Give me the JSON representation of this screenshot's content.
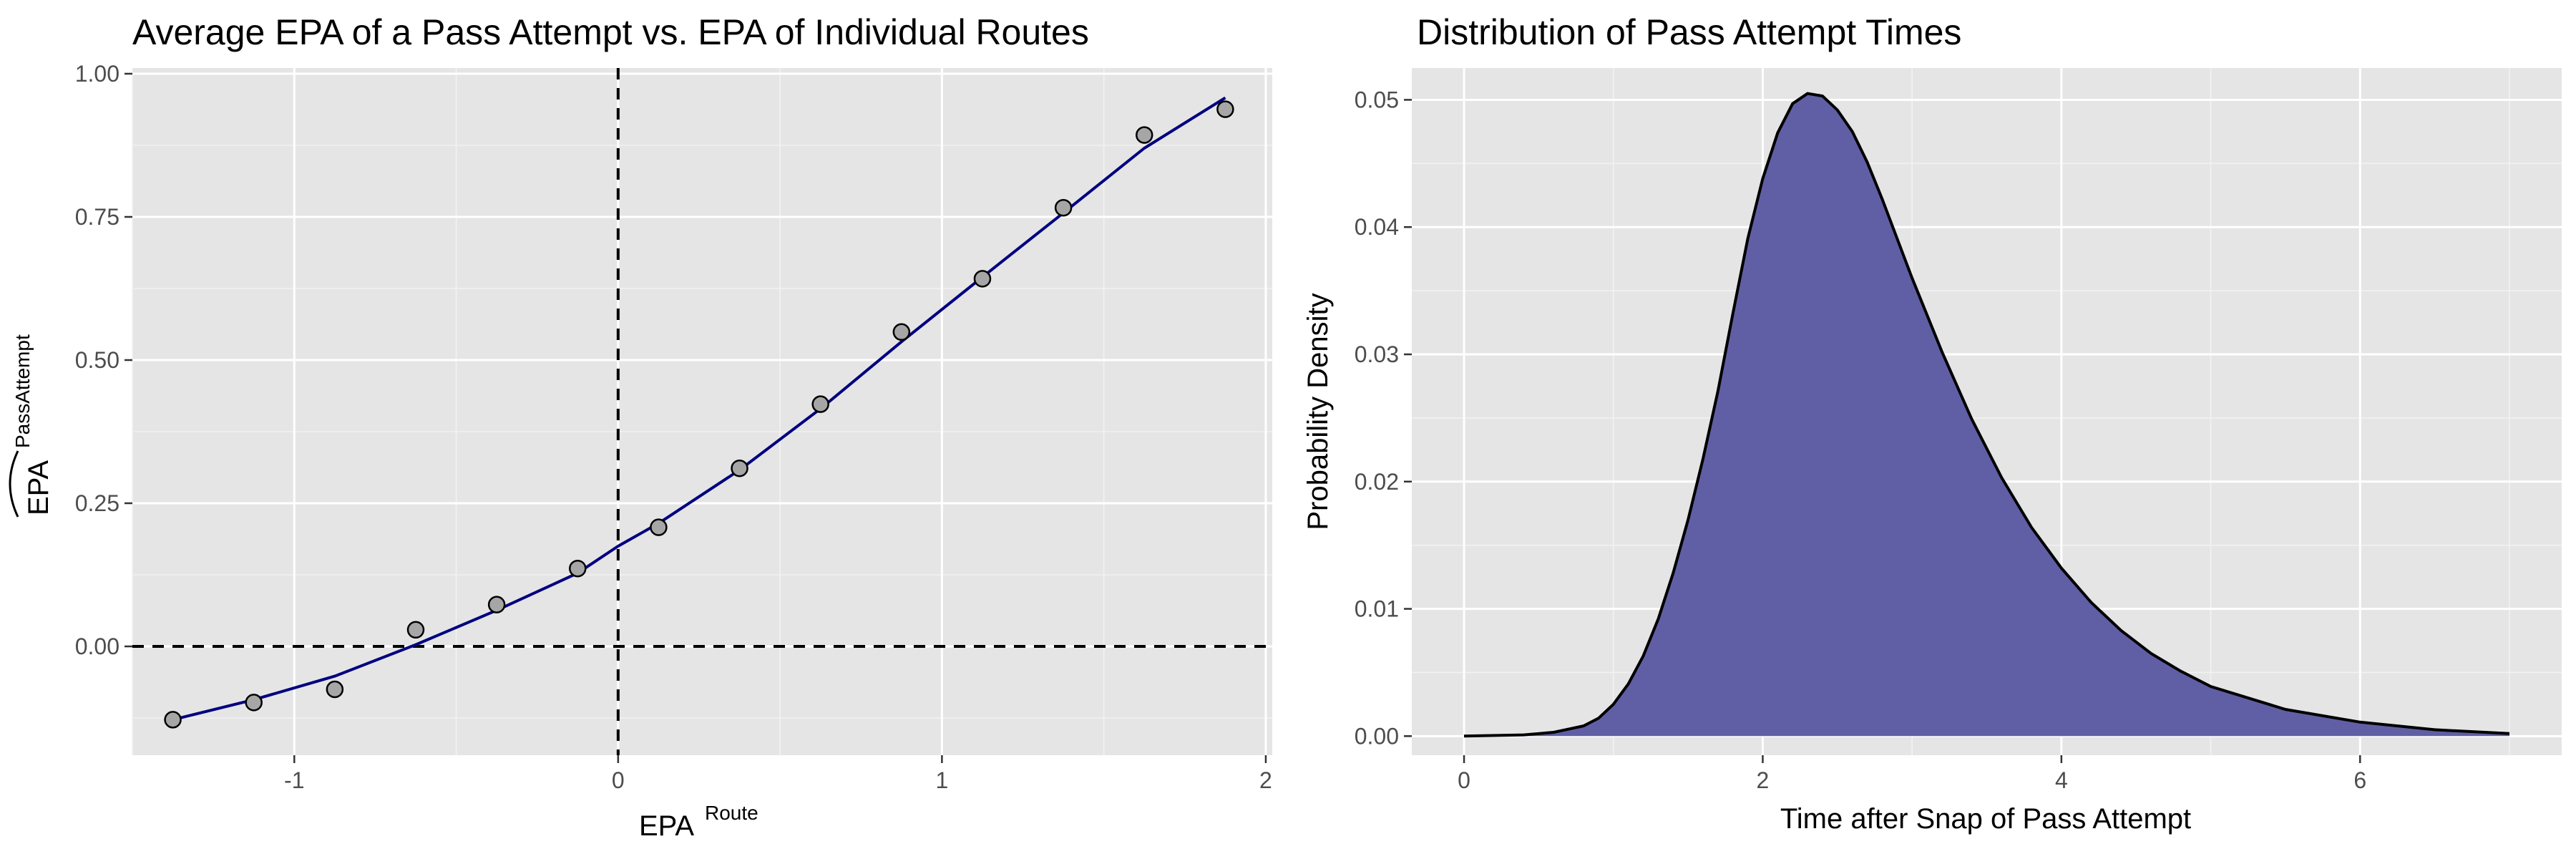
{
  "chart_data": [
    {
      "type": "scatter",
      "title": "Average EPA of a Pass Attempt vs. EPA of Individual Routes",
      "xlabel": {
        "base": "EPA",
        "superscript": "Route"
      },
      "ylabel": {
        "base": "EPA",
        "superscript": "PassAttempt",
        "hat": true
      },
      "xlim": [
        -1.5,
        2.02
      ],
      "ylim": [
        -0.19,
        1.01
      ],
      "x_ticks": [
        -1,
        0,
        1,
        2
      ],
      "x_tick_labels": [
        "-1",
        "0",
        "1",
        "2"
      ],
      "y_ticks": [
        0,
        0.25,
        0.5,
        0.75,
        1.0
      ],
      "y_tick_labels": [
        "0.00",
        "0.25",
        "0.50",
        "0.75",
        "1.00"
      ],
      "grid": true,
      "reference_lines": {
        "vertical_x": 0,
        "horizontal_y": 0,
        "style": "dashed"
      },
      "points": {
        "x": [
          -1.375,
          -1.125,
          -0.875,
          -0.625,
          -0.375,
          -0.125,
          0.125,
          0.375,
          0.625,
          0.875,
          1.125,
          1.375,
          1.625,
          1.875
        ],
        "y": [
          -0.128,
          -0.098,
          -0.075,
          0.029,
          0.073,
          0.136,
          0.208,
          0.311,
          0.423,
          0.549,
          0.642,
          0.766,
          0.893,
          0.938
        ]
      },
      "fit_line": {
        "x": [
          -1.375,
          -1.125,
          -0.875,
          -0.625,
          -0.375,
          -0.125,
          0,
          0.125,
          0.375,
          0.625,
          0.875,
          1.125,
          1.375,
          1.625,
          1.875
        ],
        "y": [
          -0.128,
          -0.093,
          -0.052,
          0.003,
          0.063,
          0.128,
          0.175,
          0.215,
          0.308,
          0.415,
          0.532,
          0.645,
          0.757,
          0.87,
          0.958
        ]
      },
      "colors": {
        "line": "#000080",
        "point_fill": "#a6a6a6",
        "point_stroke": "#000000"
      }
    },
    {
      "type": "area",
      "title": "Distribution of Pass Attempt Times",
      "xlabel": "Time after Snap of Pass Attempt",
      "ylabel": "Probability Density",
      "xlim": [
        -0.35,
        7.35
      ],
      "ylim": [
        -0.0015,
        0.0525
      ],
      "x_ticks": [
        0,
        2,
        4,
        6
      ],
      "x_tick_labels": [
        "0",
        "2",
        "4",
        "6"
      ],
      "y_ticks": [
        0,
        0.01,
        0.02,
        0.03,
        0.04,
        0.05
      ],
      "y_tick_labels": [
        "0.00",
        "0.01",
        "0.02",
        "0.03",
        "0.04",
        "0.05"
      ],
      "grid": true,
      "density": {
        "x": [
          0,
          0.4,
          0.6,
          0.8,
          0.9,
          1.0,
          1.1,
          1.2,
          1.3,
          1.4,
          1.5,
          1.6,
          1.7,
          1.8,
          1.9,
          2.0,
          2.1,
          2.2,
          2.3,
          2.4,
          2.5,
          2.6,
          2.7,
          2.8,
          3.0,
          3.2,
          3.4,
          3.6,
          3.8,
          4.0,
          4.2,
          4.4,
          4.6,
          4.8,
          5.0,
          5.5,
          6.0,
          6.5,
          7.0
        ],
        "y": [
          0,
          0.0001,
          0.0003,
          0.0008,
          0.0014,
          0.0025,
          0.0041,
          0.0063,
          0.0092,
          0.0128,
          0.017,
          0.0218,
          0.0271,
          0.0332,
          0.0391,
          0.0438,
          0.0474,
          0.0497,
          0.0505,
          0.0503,
          0.0492,
          0.0475,
          0.0451,
          0.0422,
          0.036,
          0.0302,
          0.0249,
          0.0203,
          0.0164,
          0.0132,
          0.0105,
          0.0083,
          0.0065,
          0.0051,
          0.0039,
          0.0021,
          0.0011,
          0.0005,
          0.0002
        ]
      },
      "colors": {
        "fill": "#5b5aa2",
        "line": "#000000"
      }
    }
  ]
}
